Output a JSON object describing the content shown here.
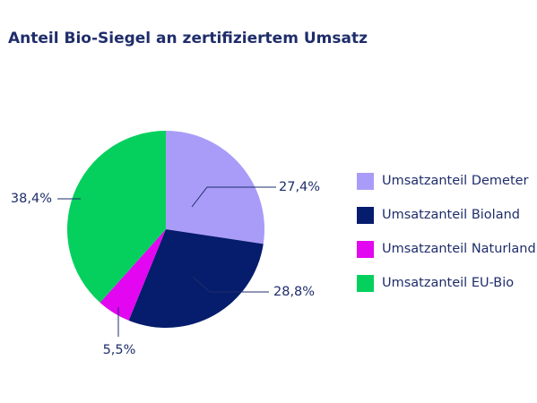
{
  "chart_data": {
    "type": "pie",
    "title": "Anteil Bio-Siegel an zertifiziertem Umsatz",
    "series": [
      {
        "name": "Umsatzanteil Demeter",
        "value": 27.4,
        "label": "27,4%",
        "color": "#a99cf8"
      },
      {
        "name": "Umsatzanteil Bioland",
        "value": 28.8,
        "label": "28,8%",
        "color": "#061c6c"
      },
      {
        "name": "Umsatzanteil Naturland",
        "value": 5.5,
        "label": "5,5%",
        "color": "#e306f0"
      },
      {
        "name": "Umsatzanteil EU-Bio",
        "value": 38.4,
        "label": "38,4%",
        "color": "#05d05e"
      }
    ],
    "legend_position": "right"
  }
}
